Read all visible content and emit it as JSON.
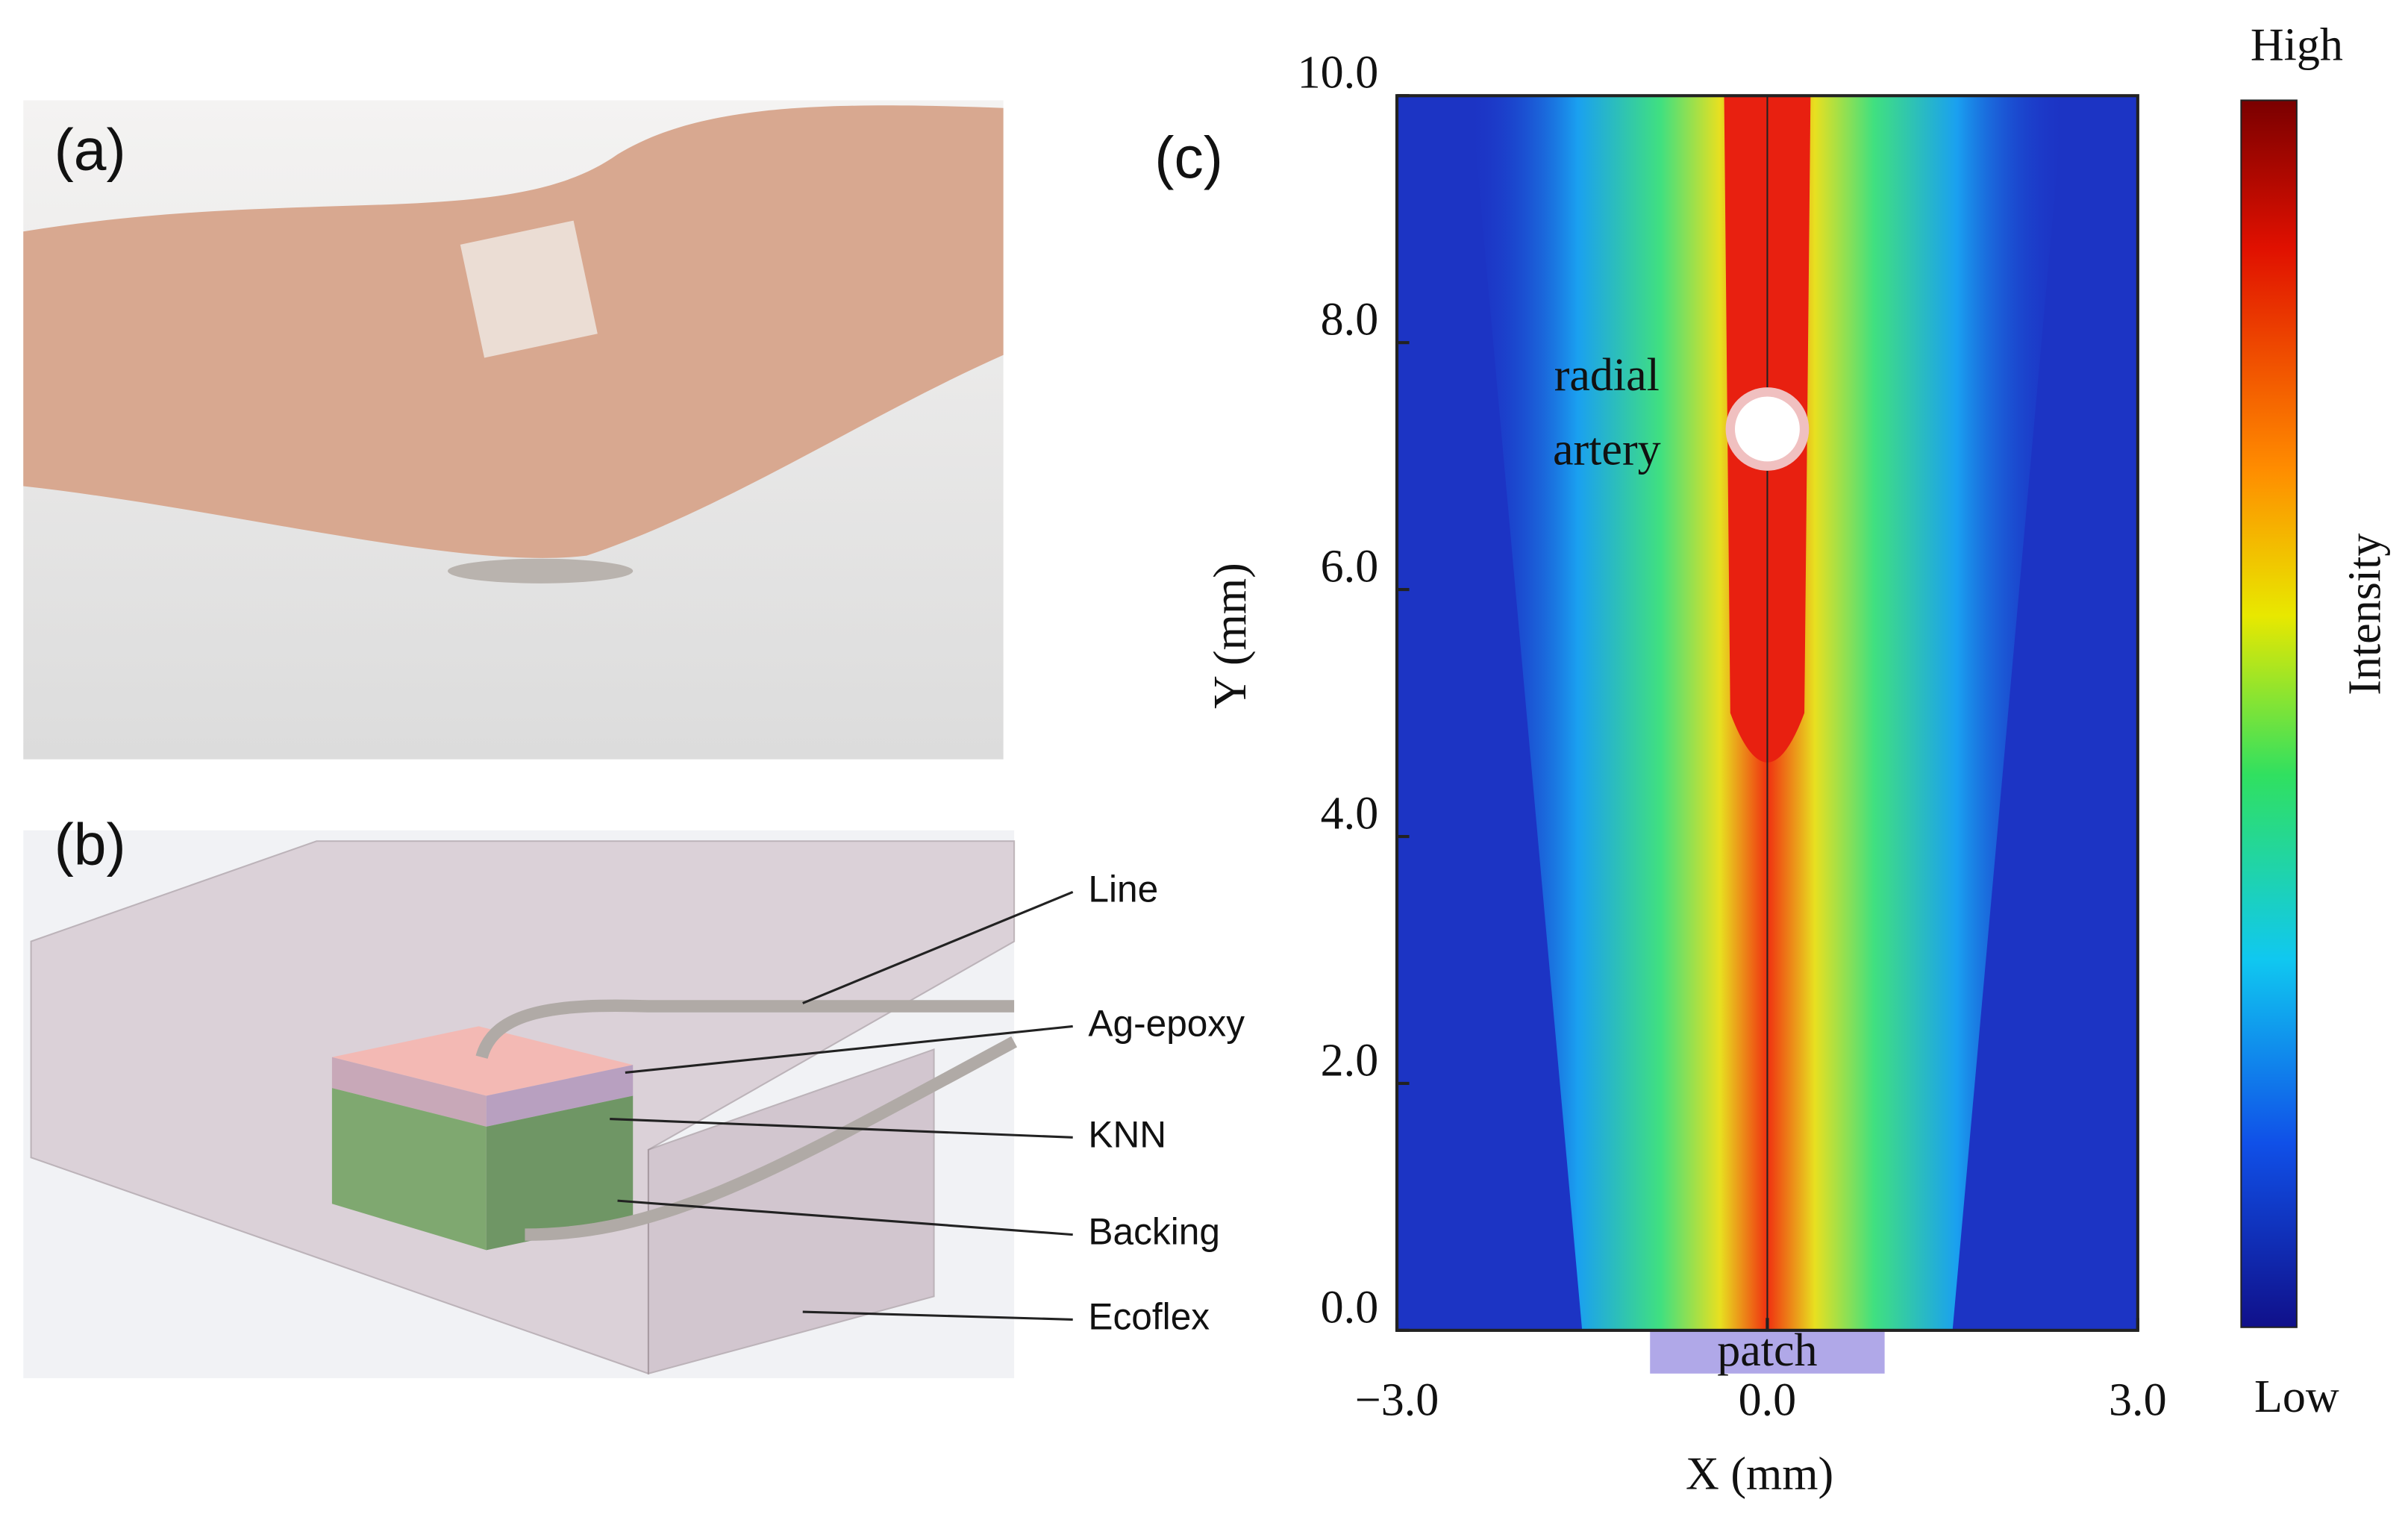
{
  "panels": {
    "a": "(a)",
    "b": "(b)",
    "c": "(c)"
  },
  "diagram": {
    "labels": [
      "Line",
      "Ag-epoxy",
      "KNN",
      "Backing",
      "Ecoflex"
    ]
  },
  "chart_data": {
    "type": "heatmap",
    "xlabel": "X (mm)",
    "ylabel": "Y (mm)",
    "xlim": [
      -3,
      3
    ],
    "ylim": [
      0,
      10
    ],
    "xticks": [
      {
        "value": -3,
        "label": "−3.0"
      },
      {
        "value": 0,
        "label": "0.0"
      },
      {
        "value": 3,
        "label": "3.0"
      }
    ],
    "yticks": [
      {
        "value": 0,
        "label": "0.0"
      },
      {
        "value": 2,
        "label": "2.0"
      },
      {
        "value": 4,
        "label": "4.0"
      },
      {
        "value": 6,
        "label": "6.0"
      },
      {
        "value": 8,
        "label": "8.0"
      },
      {
        "value": 10,
        "label": "10.0"
      }
    ],
    "annotations": [
      "radial",
      "artery",
      "patch"
    ],
    "colorbar": {
      "label": "Intensity",
      "high": "High",
      "low": "Low"
    }
  }
}
